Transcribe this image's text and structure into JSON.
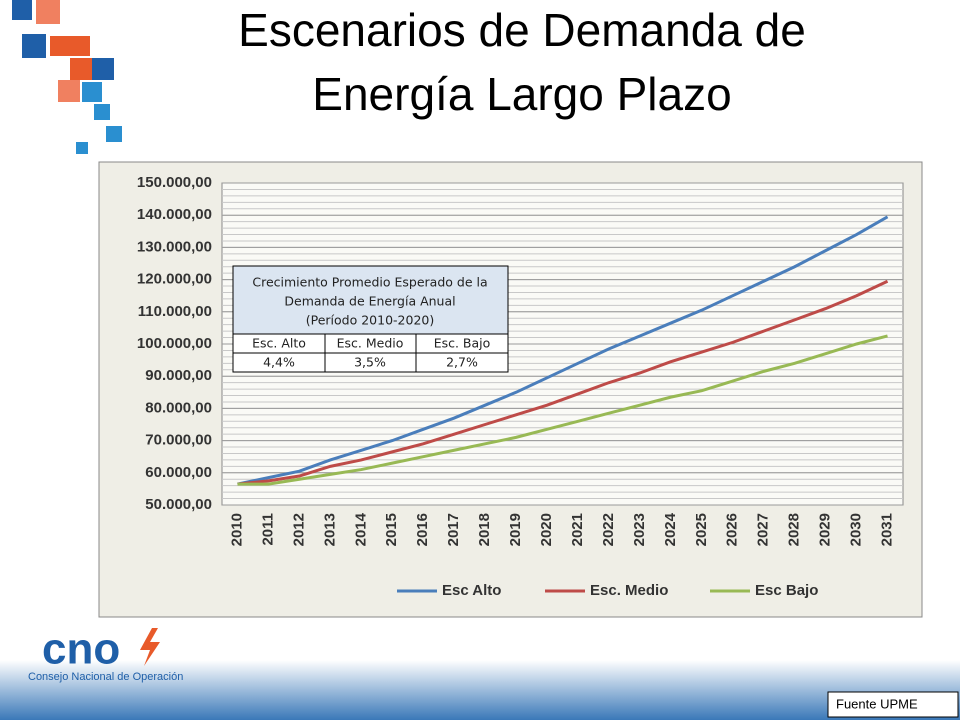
{
  "slide_title": [
    "Escenarios de Demanda de",
    "Energía Largo Plazo"
  ],
  "logo": {
    "name": "cno",
    "subtitle": "Consejo Nacional de Operación"
  },
  "source": "Fuente UPME",
  "table": {
    "title": [
      "Crecimiento Promedio Esperado de la",
      "Demanda de Energía Anual",
      "(Período 2010-2020)"
    ],
    "headers": [
      "Esc. Alto",
      "Esc. Medio",
      "Esc. Bajo"
    ],
    "rows": [
      [
        "4,4%",
        "3,5%",
        "2,7%"
      ]
    ]
  },
  "chart_data": {
    "type": "line",
    "categories": [
      "2010",
      "2011",
      "2012",
      "2013",
      "2014",
      "2015",
      "2016",
      "2017",
      "2018",
      "2019",
      "2020",
      "2021",
      "2022",
      "2023",
      "2024",
      "2025",
      "2026",
      "2027",
      "2028",
      "2029",
      "2030",
      "2031"
    ],
    "series": [
      {
        "name": "Esc Alto",
        "color": "#4a7ebb",
        "values": [
          56500,
          58500,
          60500,
          64000,
          67000,
          70000,
          73500,
          77000,
          81000,
          85000,
          89500,
          94000,
          98500,
          102500,
          106500,
          110500,
          115000,
          119500,
          124000,
          129000,
          134000,
          139500
        ]
      },
      {
        "name": "Esc. Medio",
        "color": "#be4b48",
        "values": [
          56500,
          57500,
          59000,
          62000,
          64000,
          66500,
          69000,
          72000,
          75000,
          78000,
          81000,
          84500,
          88000,
          91000,
          94500,
          97500,
          100500,
          104000,
          107500,
          111000,
          115000,
          119500
        ]
      },
      {
        "name": "Esc Bajo",
        "color": "#98b954",
        "values": [
          56500,
          56500,
          58000,
          59500,
          61000,
          63000,
          65000,
          67000,
          69000,
          71000,
          73500,
          76000,
          78500,
          81000,
          83500,
          85500,
          88500,
          91500,
          94000,
          97000,
          100000,
          102500
        ]
      }
    ],
    "ylim": [
      50000,
      150000
    ],
    "yticks": [
      {
        "value": 50000,
        "label": "50.000,00"
      },
      {
        "value": 60000,
        "label": "60.000,00"
      },
      {
        "value": 70000,
        "label": "70.000,00"
      },
      {
        "value": 80000,
        "label": "80.000,00"
      },
      {
        "value": 90000,
        "label": "90.000,00"
      },
      {
        "value": 100000,
        "label": "100.000,00"
      },
      {
        "value": 110000,
        "label": "110.000,00"
      },
      {
        "value": 120000,
        "label": "120.000,00"
      },
      {
        "value": 130000,
        "label": "130.000,00"
      },
      {
        "value": 140000,
        "label": "140.000,00"
      },
      {
        "value": 150000,
        "label": "150.000,00"
      }
    ],
    "grid": true,
    "legend": "bottom"
  }
}
